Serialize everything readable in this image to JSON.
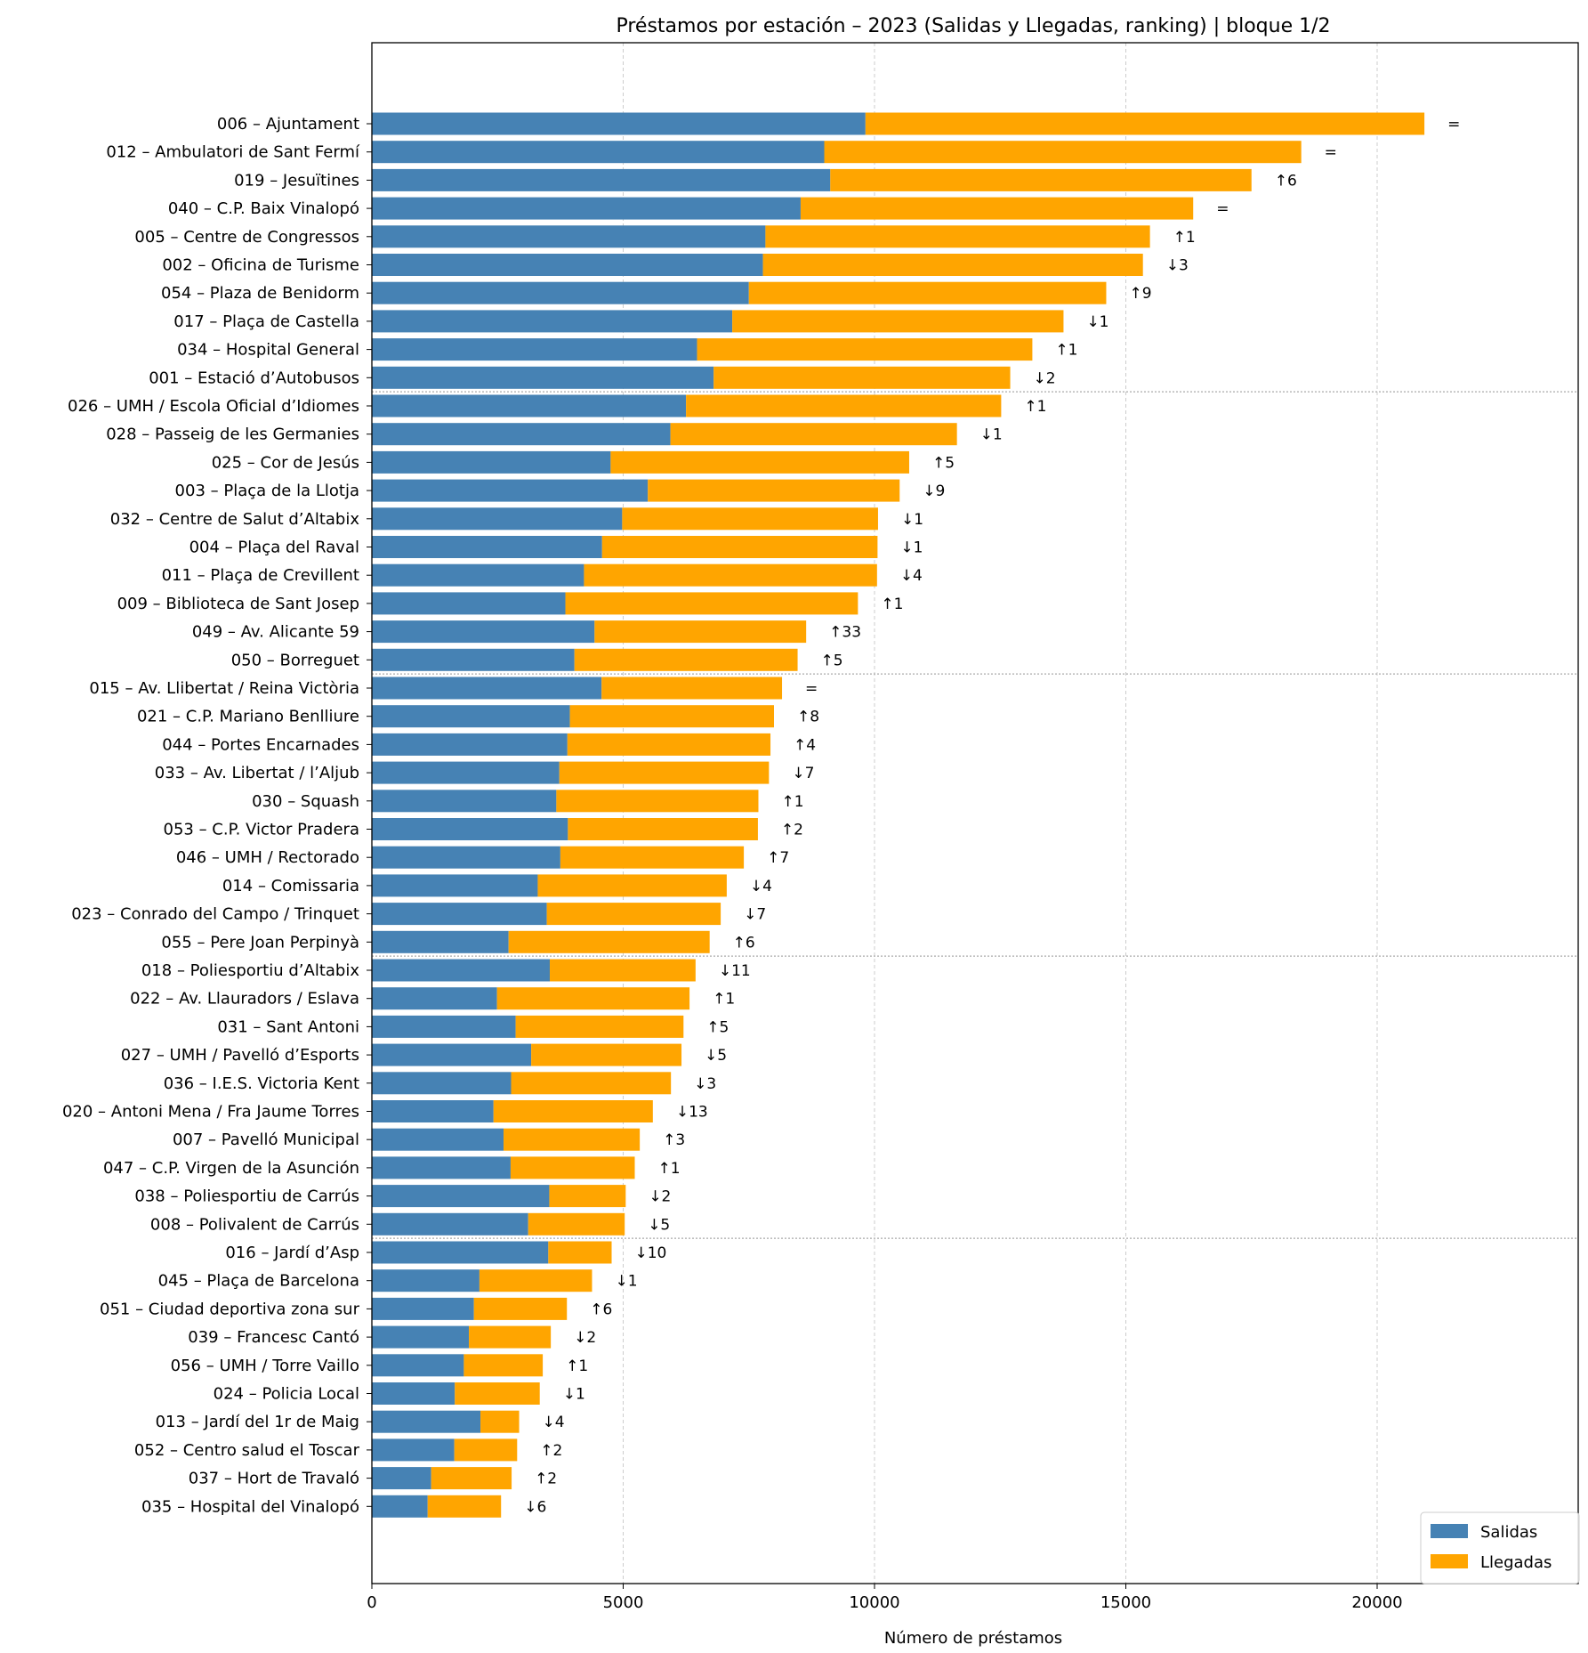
{
  "chart_data": {
    "type": "bar",
    "orientation": "horizontal",
    "stacked": true,
    "title": "Préstamos por estación – 2023 (Salidas y Llegadas, ranking)  |  bloque 1/2",
    "xlabel": "Número de préstamos",
    "ylabel": "",
    "xlim": [
      0,
      24000
    ],
    "xticks": [
      0,
      5000,
      10000,
      15000,
      20000
    ],
    "grid": "x dashed",
    "legend_position": "bottom-right",
    "group_separators_after": [
      10,
      20,
      30,
      40
    ],
    "colors": {
      "Salidas": "#4682b4",
      "Llegadas": "#ffa500"
    },
    "categories": [
      "006 – Ajuntament",
      "012 – Ambulatori de Sant Fermí",
      "019 – Jesuïtines",
      "040 – C.P. Baix Vinalopó",
      "005 – Centre de Congressos",
      "002 – Oficina de Turisme",
      "054 – Plaza de Benidorm",
      "017 – Plaça de Castella",
      "034 – Hospital General",
      "001 – Estació d’Autobusos",
      "026 – UMH / Escola Oficial d’Idiomes",
      "028 – Passeig de les Germanies",
      "025 – Cor de Jesús",
      "003 – Plaça de la Llotja",
      "032 – Centre de Salut d’Altabix",
      "004 – Plaça del Raval",
      "011 – Plaça de Crevillent",
      "009 – Biblioteca de Sant Josep",
      "049 – Av. Alicante 59",
      "050 – Borreguet",
      "015 – Av. Llibertat / Reina Victòria",
      "021 – C.P. Mariano Benlliure",
      "044 – Portes Encarnades",
      "033 – Av. Libertat / l’Aljub",
      "030 – Squash",
      "053 – C.P. Victor Pradera",
      "046 – UMH / Rectorado",
      "014 – Comissaria",
      "023 – Conrado del Campo / Trinquet",
      "055 – Pere Joan Perpinyà",
      "018 – Poliesportiu d’Altabix",
      "022 – Av. Llauradors / Eslava",
      "031 – Sant Antoni",
      "027 – UMH / Pavelló d’Esports",
      "036 – I.E.S. Victoria Kent",
      "020 – Antoni Mena / Fra Jaume Torres",
      "007 – Pavelló Municipal",
      "047 – C.P. Virgen de la Asunción",
      "038 – Poliesportiu de Carrús",
      "008 – Polivalent de Carrús",
      "016 – Jardí d’Asp",
      "045 – Plaça de Barcelona",
      "051 – Ciudad deportiva zona sur",
      "039 – Francesc Cantó",
      "056 – UMH / Torre Vaillo",
      "024 – Policia Local",
      "013 – Jardí del 1r de Maig",
      "052 – Centro salud el Toscar",
      "037 – Hort de Travaló",
      "035 – Hospital del Vinalopó"
    ],
    "series": [
      {
        "name": "Salidas",
        "values": [
          9820,
          9000,
          9120,
          8530,
          7830,
          7780,
          7500,
          7170,
          6470,
          6800,
          6250,
          5940,
          4750,
          5490,
          4980,
          4580,
          4220,
          3850,
          4430,
          4030,
          4570,
          3940,
          3890,
          3730,
          3670,
          3900,
          3750,
          3300,
          3480,
          2720,
          3540,
          2490,
          2860,
          3170,
          2770,
          2420,
          2620,
          2760,
          3530,
          3110,
          3510,
          2140,
          2030,
          1930,
          1830,
          1650,
          2160,
          1640,
          1180,
          1110
        ]
      },
      {
        "name": "Llegadas",
        "values": [
          11120,
          9490,
          8380,
          7810,
          7650,
          7560,
          7110,
          6590,
          6670,
          5900,
          6270,
          5700,
          5940,
          5010,
          5090,
          5480,
          5830,
          5820,
          4210,
          4440,
          3590,
          4060,
          4040,
          4170,
          4020,
          3780,
          3650,
          3760,
          3460,
          4000,
          2900,
          3830,
          3340,
          2990,
          3180,
          3170,
          2710,
          2470,
          1520,
          1920,
          1260,
          2240,
          1850,
          1630,
          1570,
          1690,
          770,
          1250,
          1600,
          1460
        ]
      }
    ],
    "rank_change": [
      "=",
      "=",
      "↑6",
      "=",
      "↑1",
      "↓3",
      "↑9",
      "↓1",
      "↑1",
      "↓2",
      "↑1",
      "↓1",
      "↑5",
      "↓9",
      "↓1",
      "↓1",
      "↓4",
      "↑1",
      "↑33",
      "↑5",
      "=",
      "↑8",
      "↑4",
      "↓7",
      "↑1",
      "↑2",
      "↑7",
      "↓4",
      "↓7",
      "↑6",
      "↓11",
      "↑1",
      "↑5",
      "↓5",
      "↓3",
      "↓13",
      "↑3",
      "↑1",
      "↓2",
      "↓5",
      "↓10",
      "↓1",
      "↑6",
      "↓2",
      "↑1",
      "↓1",
      "↓4",
      "↑2",
      "↑2",
      "↓6"
    ]
  }
}
